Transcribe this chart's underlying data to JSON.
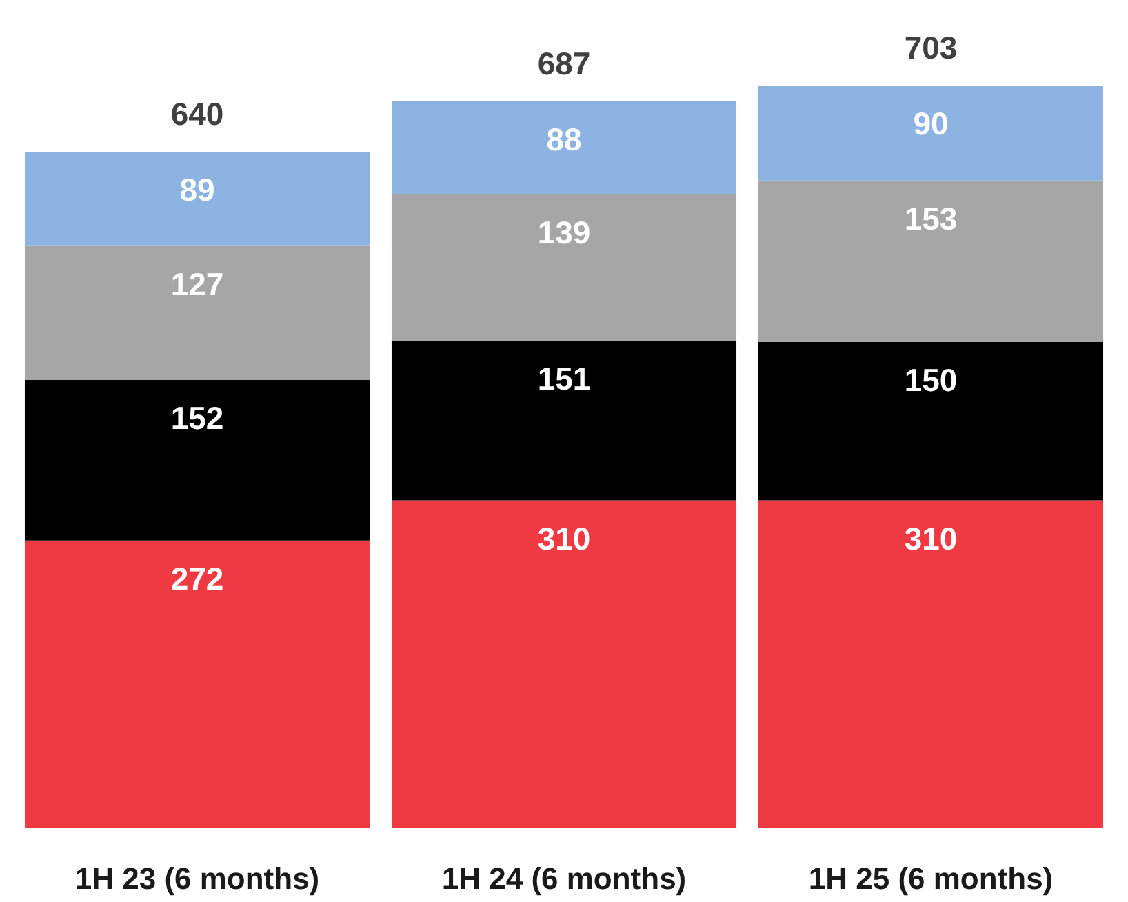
{
  "chart_data": {
    "type": "bar",
    "stacked": true,
    "categories": [
      "1H 23 (6 months)",
      "1H 24 (6 months)",
      "1H 25 (6 months)"
    ],
    "series": [
      {
        "color": "#ef3a44",
        "values": [
          272,
          310,
          310
        ]
      },
      {
        "color": "#000000",
        "values": [
          152,
          151,
          150
        ]
      },
      {
        "color": "#a6a6a6",
        "values": [
          127,
          139,
          153
        ]
      },
      {
        "color": "#8db3e2",
        "values": [
          89,
          88,
          90
        ]
      }
    ],
    "data_labels": true,
    "totals": [
      "640",
      "687",
      "703"
    ]
  }
}
